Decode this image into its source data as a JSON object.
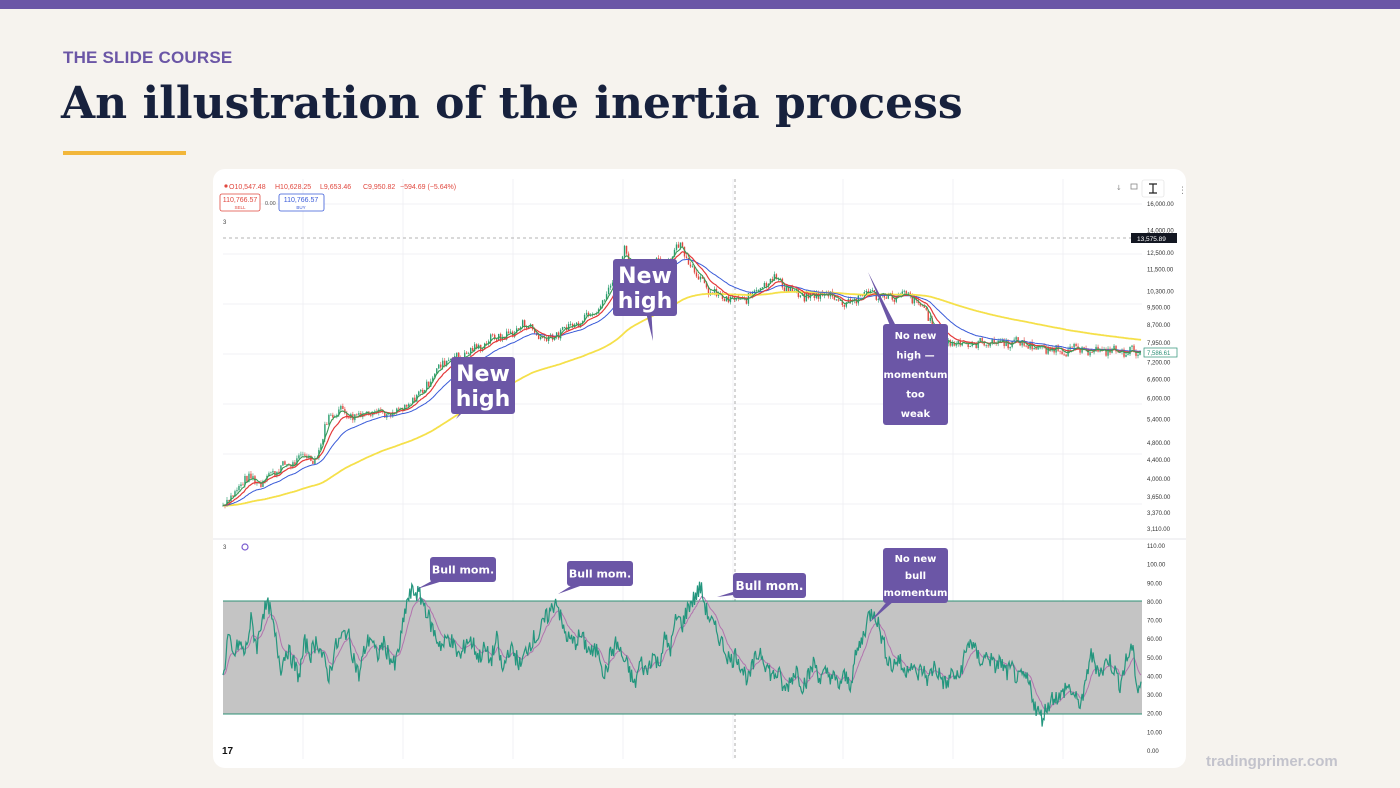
{
  "brand": {
    "accent": "#6b56a6",
    "title_color": "#17213d",
    "rule_color": "#f2b63a"
  },
  "header": {
    "eyebrow": "THE SLIDE COURSE",
    "title": "An illustration of the inertia process"
  },
  "footer": {
    "site": "tradingprimer.com"
  },
  "chart_data": {
    "type": "line",
    "toolbar": {
      "ohlc_o": "O10,547.48",
      "ohlc_h": "H10,628.25",
      "ohlc_l": "L9,653.46",
      "ohlc_c": "C9,950.82",
      "change": "−594.69 (−5.64%)",
      "sell_price": "110,766.57",
      "sell_label": "SELL",
      "spread": "0.00",
      "buy_price": "110,766.57",
      "buy_label": "BUY",
      "pane1_badge": "3",
      "pane2_badge": "3",
      "logo": "17",
      "price_tag": "13,575.89",
      "last_tag": "7,586.61"
    },
    "price_axis": {
      "scale": "log",
      "ylim": [
        3000,
        17000
      ],
      "ticks": [
        "16,000.00",
        "14,000.00",
        "12,500.00",
        "11,500.00",
        "10,300.00",
        "9,500.00",
        "8,700.00",
        "7,950.00",
        "7,200.00",
        "6,600.00",
        "6,000.00",
        "5,400.00",
        "4,800.00",
        "4,400.00",
        "4,000.00",
        "3,650.00",
        "3,370.00",
        "3,110.00"
      ]
    },
    "osc_axis": {
      "ylim": [
        0,
        110
      ],
      "ticks": [
        "110.00",
        "100.00",
        "90.00",
        "80.00",
        "70.00",
        "60.00",
        "50.00",
        "40.00",
        "30.00",
        "20.00",
        "10.00",
        "0.00"
      ],
      "band": [
        20,
        80
      ]
    },
    "price_keypoints": [
      [
        0,
        3500
      ],
      [
        8,
        3650
      ],
      [
        15,
        3850
      ],
      [
        22,
        3950
      ],
      [
        30,
        4050
      ],
      [
        38,
        3900
      ],
      [
        45,
        4100
      ],
      [
        55,
        4200
      ],
      [
        65,
        4300
      ],
      [
        75,
        4400
      ],
      [
        82,
        4500
      ],
      [
        92,
        4450
      ],
      [
        98,
        4700
      ],
      [
        105,
        5500
      ],
      [
        112,
        5600
      ],
      [
        120,
        5650
      ],
      [
        130,
        5500
      ],
      [
        140,
        5550
      ],
      [
        150,
        5700
      ],
      [
        160,
        5600
      ],
      [
        170,
        5500
      ],
      [
        180,
        5700
      ],
      [
        190,
        5900
      ],
      [
        200,
        6300
      ],
      [
        210,
        6700
      ],
      [
        222,
        7300
      ],
      [
        235,
        7400
      ],
      [
        248,
        7600
      ],
      [
        260,
        7900
      ],
      [
        275,
        8200
      ],
      [
        290,
        8300
      ],
      [
        300,
        8800
      ],
      [
        312,
        8400
      ],
      [
        322,
        8100
      ],
      [
        335,
        8300
      ],
      [
        345,
        8600
      ],
      [
        358,
        8900
      ],
      [
        370,
        9400
      ],
      [
        380,
        9600
      ],
      [
        388,
        10600
      ],
      [
        395,
        11600
      ],
      [
        402,
        12700
      ],
      [
        408,
        12000
      ],
      [
        416,
        11200
      ],
      [
        425,
        11400
      ],
      [
        435,
        12200
      ],
      [
        442,
        11800
      ],
      [
        450,
        12500
      ],
      [
        457,
        13000
      ],
      [
        465,
        12300
      ],
      [
        473,
        11300
      ],
      [
        482,
        10600
      ],
      [
        490,
        10200
      ],
      [
        498,
        10000
      ],
      [
        508,
        9900
      ],
      [
        518,
        9800
      ],
      [
        528,
        10100
      ],
      [
        538,
        10600
      ],
      [
        548,
        11000
      ],
      [
        557,
        10900
      ],
      [
        566,
        10400
      ],
      [
        576,
        10100
      ],
      [
        587,
        10000
      ],
      [
        598,
        10200
      ],
      [
        610,
        10100
      ],
      [
        622,
        9700
      ],
      [
        634,
        9900
      ],
      [
        645,
        10300
      ],
      [
        657,
        10100
      ],
      [
        670,
        10000
      ],
      [
        682,
        10100
      ],
      [
        692,
        9900
      ],
      [
        702,
        9400
      ],
      [
        712,
        8500
      ],
      [
        722,
        7950
      ],
      [
        732,
        8000
      ],
      [
        744,
        7900
      ],
      [
        756,
        7900
      ],
      [
        768,
        8000
      ],
      [
        780,
        7950
      ],
      [
        790,
        8000
      ],
      [
        800,
        7900
      ],
      [
        808,
        7900
      ],
      [
        814,
        7700
      ],
      [
        920,
        7600
      ]
    ],
    "series": [
      {
        "role": "price",
        "color": "#2a7a4f"
      },
      {
        "role": "fast-ma",
        "color": "#3a9b55"
      },
      {
        "role": "mid-ma",
        "color": "#e43a3a"
      },
      {
        "role": "slow-ma",
        "color": "#3a5bd8"
      },
      {
        "role": "long-ma",
        "color": "#f5e04a"
      },
      {
        "role": "oscillator",
        "color": "#24967e"
      },
      {
        "role": "oscillator-signal",
        "color": "#b274ae"
      }
    ],
    "osc_keypoints": [
      [
        0,
        38
      ],
      [
        5,
        62
      ],
      [
        10,
        50
      ],
      [
        16,
        58
      ],
      [
        22,
        52
      ],
      [
        28,
        70
      ],
      [
        34,
        56
      ],
      [
        40,
        75
      ],
      [
        46,
        78
      ],
      [
        52,
        62
      ],
      [
        58,
        45
      ],
      [
        64,
        55
      ],
      [
        70,
        48
      ],
      [
        76,
        40
      ],
      [
        82,
        58
      ],
      [
        88,
        52
      ],
      [
        94,
        60
      ],
      [
        100,
        50
      ],
      [
        106,
        40
      ],
      [
        112,
        55
      ],
      [
        118,
        60
      ],
      [
        124,
        65
      ],
      [
        130,
        52
      ],
      [
        136,
        40
      ],
      [
        142,
        55
      ],
      [
        148,
        62
      ],
      [
        154,
        50
      ],
      [
        160,
        58
      ],
      [
        166,
        52
      ],
      [
        172,
        45
      ],
      [
        178,
        60
      ],
      [
        184,
        80
      ],
      [
        190,
        86
      ],
      [
        196,
        84
      ],
      [
        202,
        78
      ],
      [
        208,
        68
      ],
      [
        214,
        60
      ],
      [
        220,
        56
      ],
      [
        226,
        62
      ],
      [
        232,
        55
      ],
      [
        238,
        50
      ],
      [
        244,
        60
      ],
      [
        250,
        58
      ],
      [
        256,
        50
      ],
      [
        262,
        55
      ],
      [
        268,
        48
      ],
      [
        274,
        60
      ],
      [
        280,
        42
      ],
      [
        286,
        55
      ],
      [
        292,
        52
      ],
      [
        298,
        45
      ],
      [
        304,
        55
      ],
      [
        310,
        60
      ],
      [
        316,
        62
      ],
      [
        322,
        70
      ],
      [
        328,
        75
      ],
      [
        334,
        82
      ],
      [
        340,
        66
      ],
      [
        346,
        60
      ],
      [
        352,
        58
      ],
      [
        358,
        62
      ],
      [
        364,
        56
      ],
      [
        370,
        52
      ],
      [
        376,
        55
      ],
      [
        382,
        40
      ],
      [
        388,
        52
      ],
      [
        394,
        58
      ],
      [
        400,
        50
      ],
      [
        406,
        44
      ],
      [
        412,
        35
      ],
      [
        418,
        48
      ],
      [
        424,
        42
      ],
      [
        430,
        52
      ],
      [
        436,
        46
      ],
      [
        442,
        60
      ],
      [
        448,
        55
      ],
      [
        454,
        72
      ],
      [
        460,
        68
      ],
      [
        466,
        78
      ],
      [
        472,
        82
      ],
      [
        478,
        88
      ],
      [
        484,
        75
      ],
      [
        490,
        68
      ],
      [
        496,
        62
      ],
      [
        502,
        55
      ],
      [
        508,
        48
      ],
      [
        514,
        52
      ],
      [
        520,
        44
      ],
      [
        526,
        38
      ],
      [
        532,
        48
      ],
      [
        538,
        54
      ],
      [
        544,
        46
      ],
      [
        550,
        40
      ],
      [
        556,
        42
      ],
      [
        562,
        32
      ],
      [
        568,
        38
      ],
      [
        574,
        44
      ],
      [
        580,
        35
      ],
      [
        586,
        40
      ],
      [
        592,
        48
      ],
      [
        598,
        38
      ],
      [
        604,
        42
      ],
      [
        610,
        40
      ],
      [
        616,
        35
      ],
      [
        622,
        40
      ],
      [
        628,
        36
      ],
      [
        634,
        52
      ],
      [
        640,
        60
      ],
      [
        646,
        72
      ],
      [
        652,
        76
      ],
      [
        658,
        64
      ],
      [
        664,
        52
      ],
      [
        670,
        45
      ],
      [
        676,
        50
      ],
      [
        682,
        42
      ],
      [
        688,
        48
      ],
      [
        694,
        40
      ],
      [
        700,
        44
      ],
      [
        706,
        38
      ],
      [
        712,
        46
      ],
      [
        718,
        40
      ],
      [
        724,
        35
      ],
      [
        730,
        42
      ],
      [
        736,
        38
      ],
      [
        742,
        50
      ],
      [
        748,
        60
      ],
      [
        754,
        52
      ],
      [
        760,
        48
      ],
      [
        766,
        52
      ],
      [
        772,
        45
      ],
      [
        778,
        48
      ],
      [
        784,
        42
      ],
      [
        790,
        44
      ],
      [
        796,
        38
      ],
      [
        802,
        40
      ],
      [
        808,
        35
      ],
      [
        814,
        22
      ],
      [
        820,
        18
      ],
      [
        826,
        25
      ],
      [
        832,
        30
      ],
      [
        838,
        28
      ],
      [
        844,
        35
      ],
      [
        850,
        32
      ],
      [
        856,
        25
      ],
      [
        862,
        30
      ],
      [
        868,
        52
      ],
      [
        874,
        46
      ],
      [
        880,
        42
      ],
      [
        886,
        50
      ],
      [
        892,
        44
      ],
      [
        898,
        36
      ],
      [
        904,
        48
      ],
      [
        910,
        56
      ],
      [
        916,
        32
      ],
      [
        920,
        40
      ]
    ],
    "annotations": {
      "price": [
        {
          "lines": [
            "New",
            "high"
          ],
          "bx": 238,
          "by": 188,
          "bw": 64,
          "bh": 57,
          "fs": 22,
          "line_h": 25,
          "tail_x": 243,
          "tail_y": 250
        },
        {
          "lines": [
            "New",
            "high"
          ],
          "bx": 400,
          "by": 90,
          "bw": 64,
          "bh": 57,
          "fs": 22,
          "line_h": 25,
          "tail_x": 440,
          "tail_y": 172
        },
        {
          "lines": [
            "No new",
            "high —",
            "momentum",
            "too",
            "weak"
          ],
          "bx": 670,
          "by": 155,
          "bw": 65,
          "bh": 101,
          "fs": 10,
          "line_h": 19.5,
          "tail_x": 655,
          "tail_y": 103
        }
      ],
      "oscillator": [
        {
          "lines": [
            "Bull mom."
          ],
          "bx": 217,
          "by": 388,
          "bw": 66,
          "bh": 25,
          "fs": 11,
          "line_h": 14,
          "tail_x": 204,
          "tail_y": 420
        },
        {
          "lines": [
            "Bull mom."
          ],
          "bx": 354,
          "by": 392,
          "bw": 66,
          "bh": 25,
          "fs": 11,
          "line_h": 14,
          "tail_x": 345,
          "tail_y": 425
        },
        {
          "lines": [
            "Bull mom."
          ],
          "bx": 520,
          "by": 404,
          "bw": 73,
          "bh": 25,
          "fs": 12,
          "line_h": 14,
          "tail_x": 504,
          "tail_y": 428
        },
        {
          "lines": [
            "No new",
            "bull",
            "momentum"
          ],
          "bx": 670,
          "by": 379,
          "bw": 65,
          "bh": 55,
          "fs": 10,
          "line_h": 17,
          "tail_x": 656,
          "tail_y": 454
        }
      ]
    }
  }
}
